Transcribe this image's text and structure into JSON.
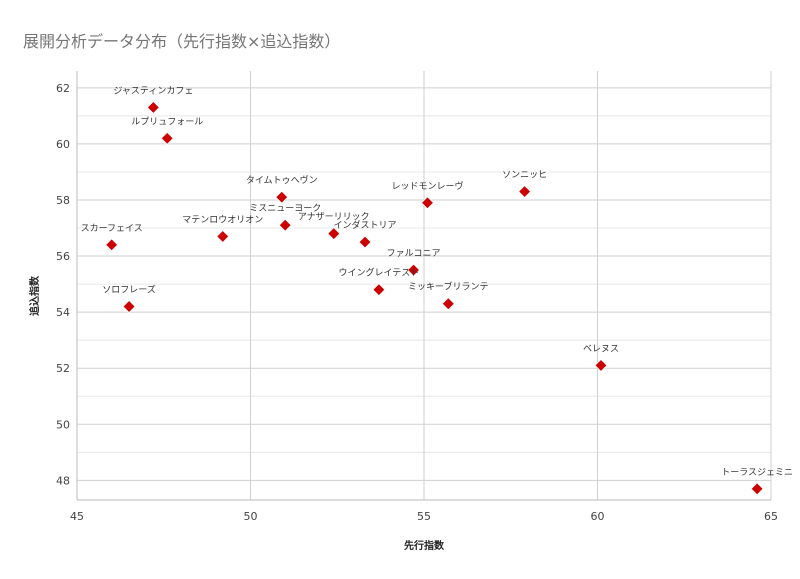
{
  "chart_data": {
    "type": "scatter",
    "title": "展開分析データ分布（先行指数×追込指数）",
    "xlabel": "先行指数",
    "ylabel": "追込指数",
    "xlim": [
      45,
      65
    ],
    "ylim": [
      47.3,
      62.6
    ],
    "x_ticks": [
      45,
      50,
      55,
      60,
      65
    ],
    "y_ticks": [
      48,
      50,
      52,
      54,
      56,
      58,
      60,
      62
    ],
    "grid": true,
    "marker": "diamond",
    "color": "#cc0000",
    "points": [
      {
        "label": "ジャスティンカフェ",
        "x": 47.2,
        "y": 61.3
      },
      {
        "label": "ルプリュフォール",
        "x": 47.6,
        "y": 60.2
      },
      {
        "label": "タイムトゥヘヴン",
        "x": 50.9,
        "y": 58.1
      },
      {
        "label": "ミスニューヨーク",
        "x": 51.0,
        "y": 57.1
      },
      {
        "label": "マテンロウオリオン",
        "x": 49.2,
        "y": 56.7
      },
      {
        "label": "スカーフェイス",
        "x": 46.0,
        "y": 56.4
      },
      {
        "label": "アナザーリリック",
        "x": 52.4,
        "y": 56.8
      },
      {
        "label": "インダストリア",
        "x": 53.3,
        "y": 56.5
      },
      {
        "label": "レッドモンレーヴ",
        "x": 55.1,
        "y": 57.9
      },
      {
        "label": "ソンニッヒ",
        "x": 57.9,
        "y": 58.3
      },
      {
        "label": "ファルコニア",
        "x": 54.7,
        "y": 55.5
      },
      {
        "label": "ウイングレイテスト",
        "x": 53.7,
        "y": 54.8
      },
      {
        "label": "ミッキーブリランテ",
        "x": 55.7,
        "y": 54.3
      },
      {
        "label": "ソロフレーズ",
        "x": 46.5,
        "y": 54.2
      },
      {
        "label": "ベレヌス",
        "x": 60.1,
        "y": 52.1
      },
      {
        "label": "トーラスジェミニ",
        "x": 64.6,
        "y": 47.7
      }
    ]
  }
}
